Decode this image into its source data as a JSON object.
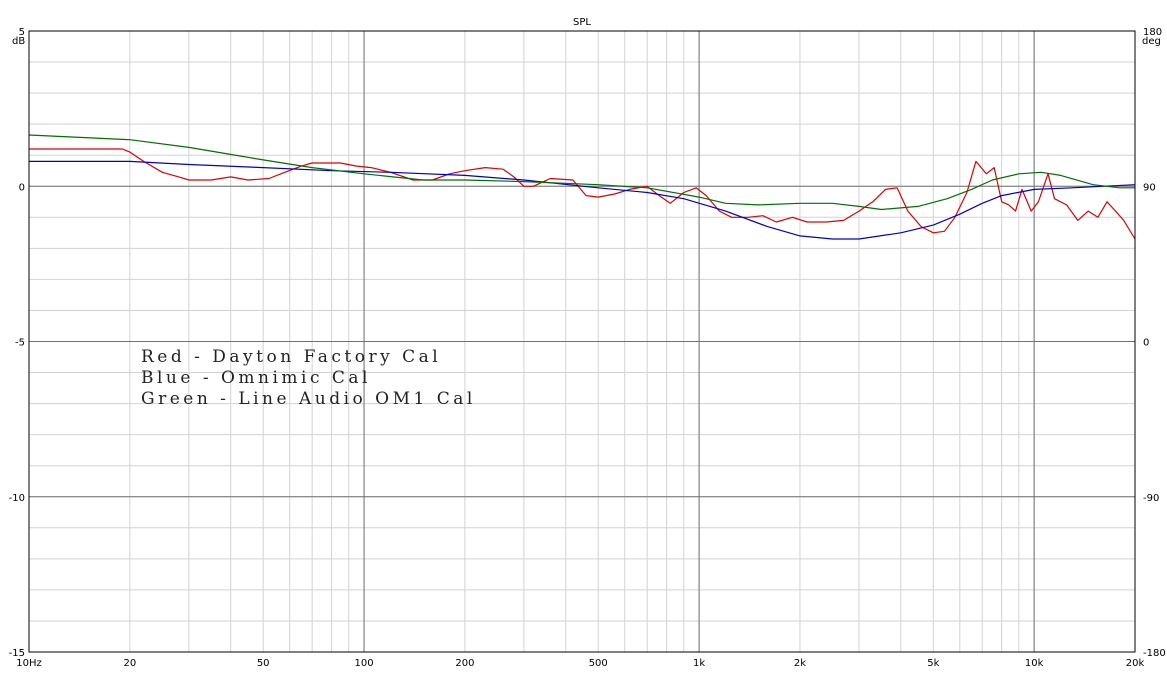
{
  "chart_data": {
    "type": "line",
    "title": "SPL",
    "xscale": "log",
    "xlim": [
      10,
      20000
    ],
    "ylim": [
      -15,
      5
    ],
    "y2lim": [
      -180,
      180
    ],
    "grid": true,
    "yunit": "dB",
    "y2unit": "deg",
    "x_ticks": [
      {
        "value": 10,
        "label": "10Hz"
      },
      {
        "value": 20,
        "label": "20"
      },
      {
        "value": 50,
        "label": "50"
      },
      {
        "value": 100,
        "label": "100"
      },
      {
        "value": 200,
        "label": "200"
      },
      {
        "value": 500,
        "label": "500"
      },
      {
        "value": 1000,
        "label": "1k"
      },
      {
        "value": 2000,
        "label": "2k"
      },
      {
        "value": 5000,
        "label": "5k"
      },
      {
        "value": 10000,
        "label": "10k"
      },
      {
        "value": 20000,
        "label": "20k"
      }
    ],
    "y_ticks": [
      {
        "value": 5,
        "label": "5"
      },
      {
        "value": 0,
        "label": "0"
      },
      {
        "value": -5,
        "label": "-5"
      },
      {
        "value": -10,
        "label": "-10"
      },
      {
        "value": -15,
        "label": "-15"
      }
    ],
    "y2_ticks": [
      {
        "value": 180,
        "label": "180"
      },
      {
        "value": 90,
        "label": "90"
      },
      {
        "value": 0,
        "label": "0"
      },
      {
        "value": -90,
        "label": "-90"
      },
      {
        "value": -180,
        "label": "-180"
      }
    ],
    "annotations": [
      "Red - Dayton Factory Cal",
      "Blue - Omnimic Cal",
      "Green - Line Audio OM1 Cal"
    ],
    "series": [
      {
        "color": "#e00000",
        "points": [
          [
            10,
            1.2
          ],
          [
            19,
            1.2
          ],
          [
            20,
            1.1
          ],
          [
            22,
            0.8
          ],
          [
            25,
            0.45
          ],
          [
            28,
            0.3
          ],
          [
            30,
            0.2
          ],
          [
            35,
            0.2
          ],
          [
            40,
            0.3
          ],
          [
            45,
            0.2
          ],
          [
            52,
            0.25
          ],
          [
            58,
            0.45
          ],
          [
            65,
            0.65
          ],
          [
            70,
            0.75
          ],
          [
            85,
            0.75
          ],
          [
            95,
            0.65
          ],
          [
            105,
            0.6
          ],
          [
            120,
            0.45
          ],
          [
            140,
            0.2
          ],
          [
            160,
            0.2
          ],
          [
            180,
            0.4
          ],
          [
            200,
            0.5
          ],
          [
            230,
            0.6
          ],
          [
            260,
            0.55
          ],
          [
            280,
            0.3
          ],
          [
            300,
            0.0
          ],
          [
            320,
            0.0
          ],
          [
            360,
            0.25
          ],
          [
            420,
            0.2
          ],
          [
            460,
            -0.3
          ],
          [
            500,
            -0.35
          ],
          [
            560,
            -0.25
          ],
          [
            620,
            -0.1
          ],
          [
            700,
            0.0
          ],
          [
            760,
            -0.3
          ],
          [
            820,
            -0.55
          ],
          [
            900,
            -0.2
          ],
          [
            980,
            -0.05
          ],
          [
            1050,
            -0.3
          ],
          [
            1150,
            -0.8
          ],
          [
            1250,
            -1.0
          ],
          [
            1400,
            -1.0
          ],
          [
            1550,
            -0.95
          ],
          [
            1700,
            -1.15
          ],
          [
            1900,
            -1.0
          ],
          [
            2100,
            -1.15
          ],
          [
            2400,
            -1.15
          ],
          [
            2700,
            -1.1
          ],
          [
            3000,
            -0.8
          ],
          [
            3300,
            -0.5
          ],
          [
            3600,
            -0.1
          ],
          [
            3900,
            -0.05
          ],
          [
            4200,
            -0.8
          ],
          [
            4600,
            -1.3
          ],
          [
            5000,
            -1.5
          ],
          [
            5400,
            -1.45
          ],
          [
            5800,
            -1.0
          ],
          [
            6300,
            -0.2
          ],
          [
            6700,
            0.8
          ],
          [
            7200,
            0.4
          ],
          [
            7600,
            0.6
          ],
          [
            8000,
            -0.5
          ],
          [
            8400,
            -0.6
          ],
          [
            8800,
            -0.8
          ],
          [
            9200,
            -0.1
          ],
          [
            9800,
            -0.8
          ],
          [
            10300,
            -0.5
          ],
          [
            11000,
            0.4
          ],
          [
            11500,
            -0.4
          ],
          [
            12500,
            -0.6
          ],
          [
            13500,
            -1.1
          ],
          [
            14500,
            -0.8
          ],
          [
            15500,
            -1.0
          ],
          [
            16500,
            -0.5
          ],
          [
            17500,
            -0.8
          ],
          [
            18500,
            -1.1
          ],
          [
            20000,
            -1.7
          ]
        ]
      },
      {
        "color": "#0000d0",
        "points": [
          [
            10,
            0.8
          ],
          [
            20,
            0.8
          ],
          [
            30,
            0.7
          ],
          [
            50,
            0.6
          ],
          [
            80,
            0.5
          ],
          [
            120,
            0.45
          ],
          [
            200,
            0.35
          ],
          [
            300,
            0.2
          ],
          [
            500,
            -0.05
          ],
          [
            700,
            -0.2
          ],
          [
            900,
            -0.4
          ],
          [
            1200,
            -0.8
          ],
          [
            1600,
            -1.3
          ],
          [
            2000,
            -1.6
          ],
          [
            2500,
            -1.7
          ],
          [
            3000,
            -1.7
          ],
          [
            4000,
            -1.5
          ],
          [
            5000,
            -1.25
          ],
          [
            6000,
            -0.9
          ],
          [
            7000,
            -0.55
          ],
          [
            8000,
            -0.3
          ],
          [
            10000,
            -0.1
          ],
          [
            13000,
            -0.05
          ],
          [
            16000,
            0.0
          ],
          [
            20000,
            0.05
          ]
        ]
      },
      {
        "color": "#007000",
        "points": [
          [
            10,
            1.65
          ],
          [
            20,
            1.5
          ],
          [
            30,
            1.25
          ],
          [
            50,
            0.85
          ],
          [
            70,
            0.6
          ],
          [
            100,
            0.4
          ],
          [
            150,
            0.2
          ],
          [
            200,
            0.2
          ],
          [
            300,
            0.15
          ],
          [
            500,
            0.05
          ],
          [
            700,
            -0.05
          ],
          [
            1000,
            -0.35
          ],
          [
            1200,
            -0.55
          ],
          [
            1500,
            -0.6
          ],
          [
            2000,
            -0.55
          ],
          [
            2500,
            -0.55
          ],
          [
            3000,
            -0.65
          ],
          [
            3500,
            -0.75
          ],
          [
            4500,
            -0.65
          ],
          [
            5500,
            -0.4
          ],
          [
            6500,
            -0.1
          ],
          [
            7500,
            0.2
          ],
          [
            9000,
            0.4
          ],
          [
            10500,
            0.45
          ],
          [
            12000,
            0.35
          ],
          [
            15000,
            0.05
          ],
          [
            18000,
            -0.05
          ],
          [
            20000,
            -0.05
          ]
        ]
      }
    ]
  }
}
